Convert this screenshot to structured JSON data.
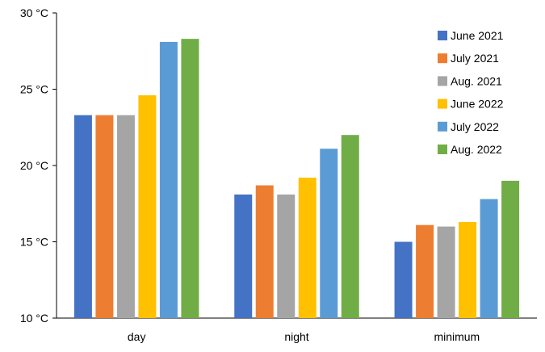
{
  "chart_data": {
    "type": "bar",
    "title": "",
    "xlabel": "",
    "ylabel": "",
    "categories": [
      "day",
      "night",
      "minimum"
    ],
    "ylim": [
      10,
      30
    ],
    "y_ticks": [
      "10 °C",
      "15 °C",
      "20 °C",
      "25 °C",
      "30 °C"
    ],
    "y_tick_values": [
      10,
      15,
      20,
      25,
      30
    ],
    "grid": false,
    "legend_position": "top-right",
    "series": [
      {
        "name": "June 2021",
        "color": "#4472C4",
        "values": [
          23.3,
          18.1,
          15.0
        ]
      },
      {
        "name": "July 2021",
        "color": "#ED7D31",
        "values": [
          23.3,
          18.7,
          16.1
        ]
      },
      {
        "name": "Aug. 2021",
        "color": "#A5A5A5",
        "values": [
          23.3,
          18.1,
          16.0
        ]
      },
      {
        "name": "June 2022",
        "color": "#FFC000",
        "values": [
          24.6,
          19.2,
          16.3
        ]
      },
      {
        "name": "July 2022",
        "color": "#5B9BD5",
        "values": [
          28.1,
          21.1,
          17.8
        ]
      },
      {
        "name": "Aug. 2022",
        "color": "#70AD47",
        "values": [
          28.3,
          22.0,
          19.0
        ]
      }
    ]
  }
}
